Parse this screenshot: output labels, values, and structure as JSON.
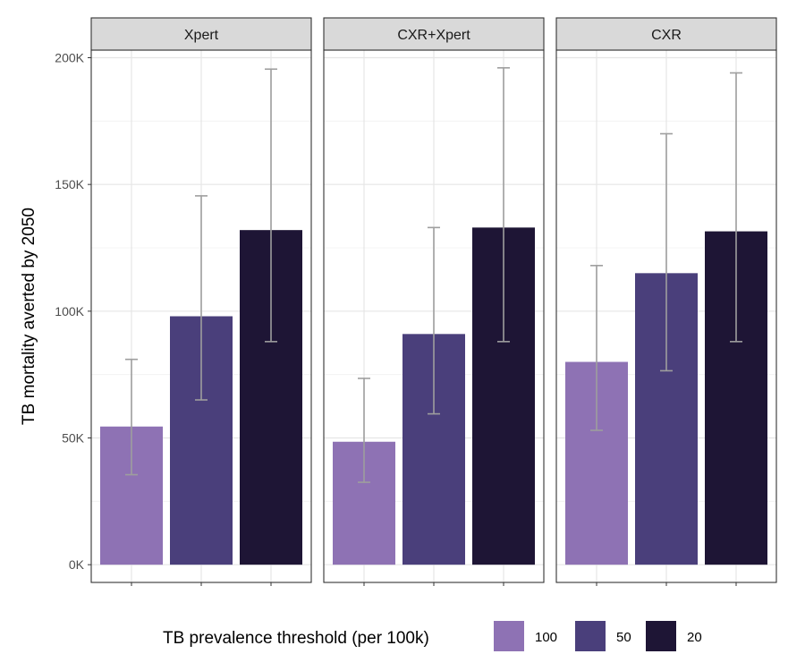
{
  "chart_data": {
    "type": "bar",
    "ylabel": "TB mortality averted by 2050",
    "xlabel": "",
    "ylim": [
      -7000,
      203000
    ],
    "yticks": [
      0,
      50000,
      100000,
      150000,
      200000
    ],
    "ytick_labels": [
      "0K",
      "50K",
      "100K",
      "150K",
      "200K"
    ],
    "grid": true,
    "legend": {
      "title": "TB prevalence threshold (per 100k)",
      "position": "bottom",
      "entries": [
        {
          "label": "100",
          "color": "#8e72b4"
        },
        {
          "label": "50",
          "color": "#4a3f7b"
        },
        {
          "label": "20",
          "color": "#1e1535"
        }
      ]
    },
    "panels": [
      {
        "strip": "Xpert",
        "bars": [
          {
            "threshold": "100",
            "value": 54500,
            "lower": 35500,
            "upper": 81000
          },
          {
            "threshold": "50",
            "value": 98000,
            "lower": 65000,
            "upper": 145500
          },
          {
            "threshold": "20",
            "value": 132000,
            "lower": 88000,
            "upper": 195500
          }
        ]
      },
      {
        "strip": "CXR+Xpert",
        "bars": [
          {
            "threshold": "100",
            "value": 48500,
            "lower": 32500,
            "upper": 73500
          },
          {
            "threshold": "50",
            "value": 91000,
            "lower": 59500,
            "upper": 133000
          },
          {
            "threshold": "20",
            "value": 133000,
            "lower": 88000,
            "upper": 196000
          }
        ]
      },
      {
        "strip": "CXR",
        "bars": [
          {
            "threshold": "100",
            "value": 80000,
            "lower": 53000,
            "upper": 118000
          },
          {
            "threshold": "50",
            "value": 115000,
            "lower": 76500,
            "upper": 170000
          },
          {
            "threshold": "20",
            "value": 131500,
            "lower": 88000,
            "upper": 194000
          }
        ]
      }
    ],
    "errorbar_color": "#9e9e9e"
  }
}
